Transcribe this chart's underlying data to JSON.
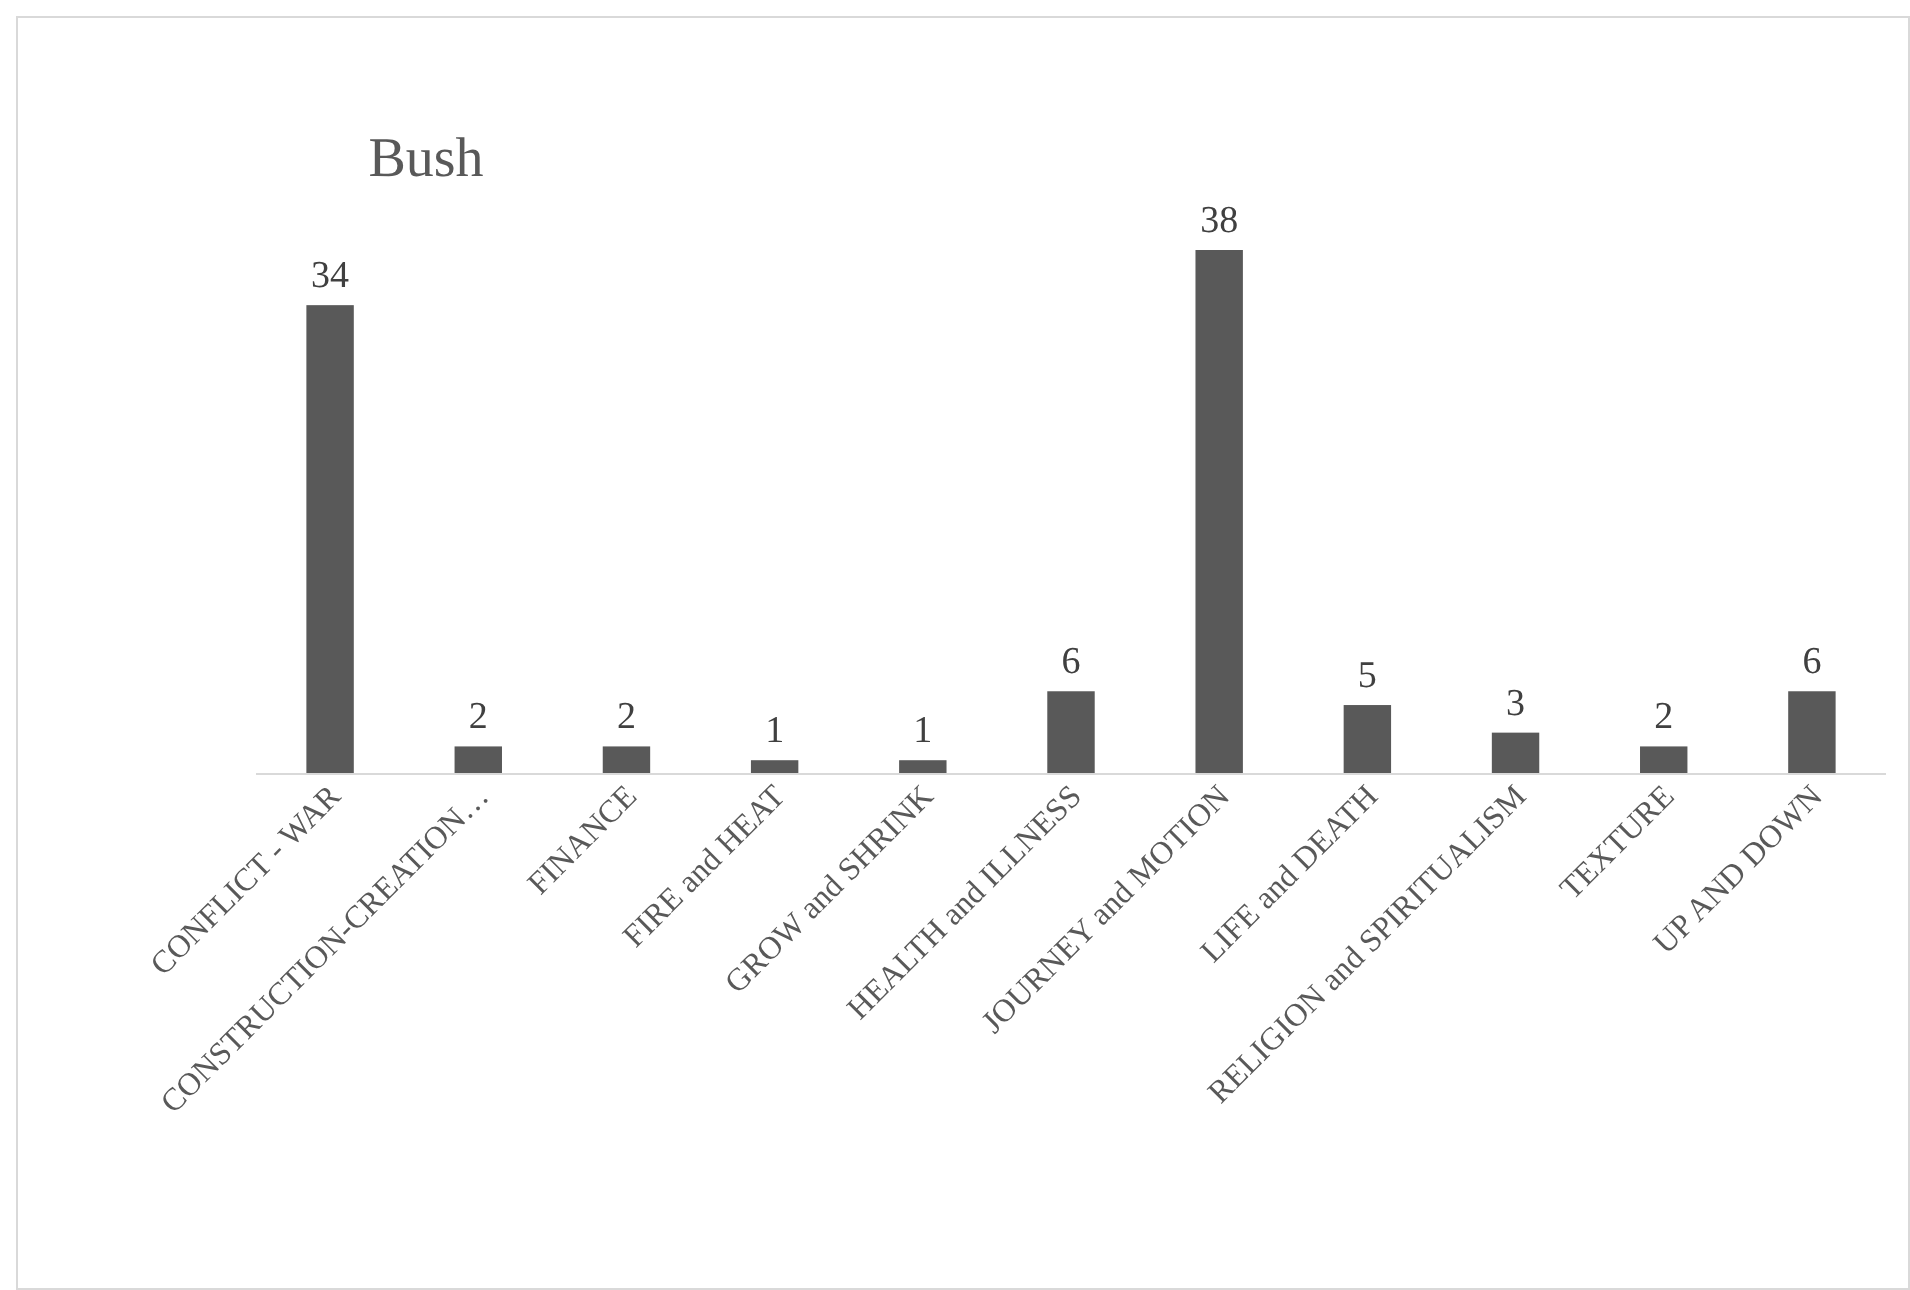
{
  "chart_data": {
    "type": "bar",
    "title": "Bush",
    "categories": [
      "CONFLICT - WAR",
      "CONSTRUCTION-CREATION…",
      "FINANCE",
      "FIRE and HEAT",
      "GROW and SHRINK",
      "HEALTH and ILLNESS",
      "JOURNEY and MOTION",
      "LIFE and DEATH",
      "RELIGION and SPIRITUALISM",
      "TEXTURE",
      "UP AND DOWN"
    ],
    "values": [
      34,
      2,
      2,
      1,
      1,
      6,
      38,
      5,
      3,
      2,
      6
    ],
    "color": "#595959",
    "data_labels": true
  }
}
